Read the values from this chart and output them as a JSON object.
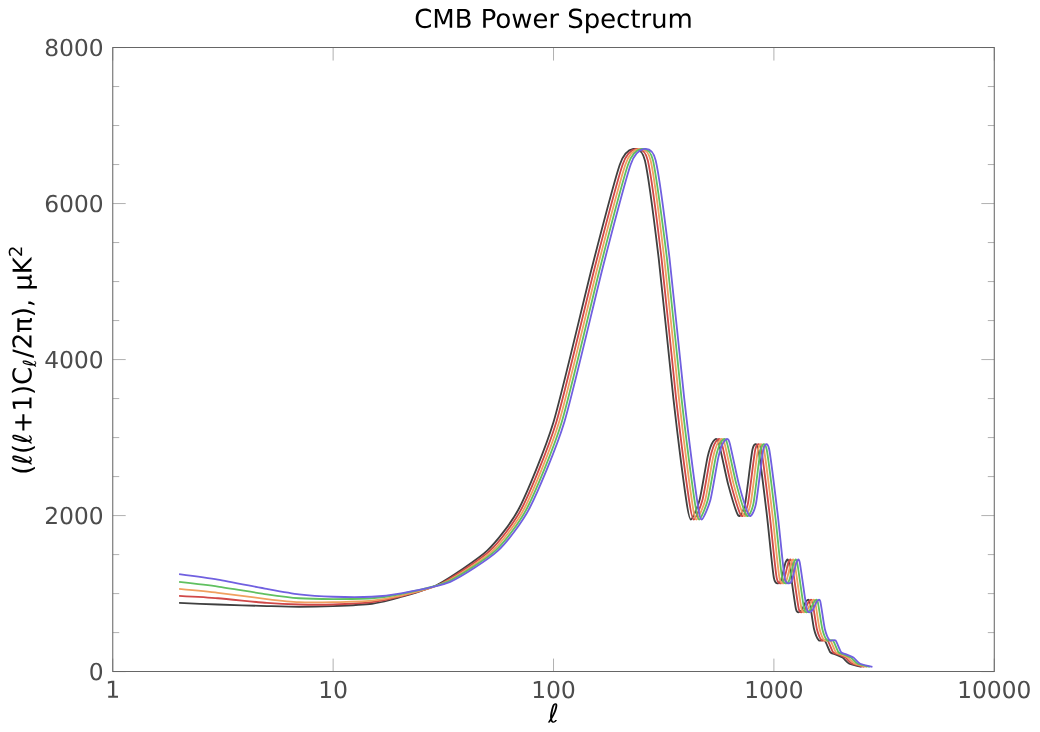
{
  "chart_data": {
    "type": "line",
    "title": "CMB Power Spectrum",
    "xlabel": "ℓ",
    "ylabel": "(ℓ(ℓ+1)C$_{ℓ}$/2π), μK$^{2}$",
    "log": "x",
    "x": [
      2,
      3,
      5,
      7,
      10,
      15,
      20,
      30,
      50,
      70,
      100,
      150,
      200,
      230,
      260,
      300,
      350,
      400,
      420,
      460,
      500,
      530,
      560,
      620,
      690,
      740,
      800,
      850,
      930,
      1000,
      1070,
      1130,
      1170,
      1260,
      1330,
      1400,
      1450,
      1520,
      1600,
      1700,
      1800,
      1900,
      2050,
      2200,
      2500
    ],
    "series": [
      {
        "color": "#7060e0",
        "x": [
          2,
          3,
          5,
          7,
          10,
          15,
          20,
          34,
          56,
          78,
          112,
          168,
          224,
          258,
          291,
          336,
          392,
          448,
          470,
          515,
          560,
          594,
          627,
          694,
          773,
          829,
          896,
          952,
          1042,
          1120,
          1198,
          1266,
          1310,
          1411,
          1490,
          1568,
          1624,
          1702,
          1792,
          1904,
          2016,
          2128,
          2296,
          2464,
          2800
        ],
        "values": [
          1250,
          1180,
          1060,
          990,
          960,
          960,
          1000,
          1150,
          1550,
          2100,
          3200,
          5200,
          6500,
          6700,
          6550,
          5300,
          3500,
          2200,
          1950,
          2200,
          2750,
          2950,
          2950,
          2400,
          2000,
          2150,
          2850,
          2850,
          2000,
          1200,
          1150,
          1400,
          1400,
          800,
          780,
          900,
          900,
          550,
          400,
          400,
          250,
          220,
          180,
          100,
          60
        ]
      },
      {
        "color": "#60c060",
        "x": [
          2,
          3,
          5,
          7,
          10,
          15,
          20,
          33,
          54.5,
          76,
          109,
          163.5,
          218,
          251,
          283,
          327,
          381,
          436,
          458,
          501,
          545,
          578,
          610,
          676,
          752,
          807,
          872,
          927,
          1014,
          1090,
          1166,
          1232,
          1275,
          1373,
          1450,
          1526,
          1580,
          1657,
          1744,
          1853,
          1962,
          2071,
          2234,
          2398,
          2725
        ],
        "values": [
          1150,
          1090,
          990,
          940,
          930,
          940,
          990,
          1150,
          1550,
          2100,
          3200,
          5200,
          6500,
          6700,
          6550,
          5300,
          3500,
          2200,
          1950,
          2200,
          2750,
          2950,
          2950,
          2400,
          2000,
          2150,
          2850,
          2850,
          2000,
          1200,
          1150,
          1400,
          1400,
          800,
          780,
          900,
          900,
          550,
          400,
          400,
          250,
          220,
          180,
          100,
          60
        ]
      },
      {
        "color": "#f0a060",
        "x": [
          2,
          3,
          5,
          7,
          10,
          15,
          20,
          32,
          53,
          74,
          106,
          159,
          212,
          244,
          276,
          318,
          371,
          424,
          445,
          488,
          530,
          562,
          594,
          657,
          731,
          784,
          848,
          901,
          986,
          1060,
          1134,
          1198,
          1240,
          1336,
          1410,
          1484,
          1537,
          1611,
          1696,
          1802,
          1908,
          2014,
          2173,
          2332,
          2650
        ],
        "values": [
          1060,
          1010,
          930,
          890,
          890,
          910,
          970,
          1140,
          1550,
          2100,
          3200,
          5200,
          6500,
          6700,
          6550,
          5300,
          3500,
          2200,
          1950,
          2200,
          2750,
          2950,
          2950,
          2400,
          2000,
          2150,
          2850,
          2850,
          2000,
          1200,
          1150,
          1400,
          1400,
          800,
          780,
          900,
          900,
          550,
          400,
          400,
          250,
          220,
          180,
          100,
          60
        ]
      },
      {
        "color": "#d04848",
        "x": [
          2,
          3,
          5,
          7,
          10,
          15,
          20,
          31,
          51.5,
          72,
          103,
          154.5,
          206,
          237,
          268,
          309,
          360,
          412,
          433,
          474,
          515,
          546,
          577,
          639,
          711,
          762,
          824,
          876,
          958,
          1030,
          1102,
          1164,
          1205,
          1298,
          1370,
          1442,
          1494,
          1566,
          1648,
          1751,
          1854,
          1957,
          2112,
          2266,
          2575
        ],
        "values": [
          970,
          940,
          880,
          860,
          860,
          890,
          960,
          1130,
          1550,
          2100,
          3200,
          5200,
          6500,
          6700,
          6550,
          5300,
          3500,
          2200,
          1950,
          2200,
          2750,
          2950,
          2950,
          2400,
          2000,
          2150,
          2850,
          2850,
          2000,
          1200,
          1150,
          1400,
          1400,
          800,
          780,
          900,
          900,
          550,
          400,
          400,
          250,
          220,
          180,
          100,
          60
        ]
      },
      {
        "color": "#404040",
        "values": [
          880,
          860,
          840,
          830,
          840,
          870,
          950,
          1120,
          1550,
          2100,
          3200,
          5200,
          6500,
          6700,
          6550,
          5300,
          3500,
          2200,
          1950,
          2200,
          2750,
          2950,
          2950,
          2400,
          2000,
          2150,
          2850,
          2850,
          2000,
          1200,
          1150,
          1400,
          1400,
          800,
          780,
          900,
          900,
          550,
          400,
          400,
          250,
          220,
          180,
          100,
          60
        ]
      }
    ],
    "xlim": [
      1,
      10000
    ],
    "xticks": [
      1,
      10,
      100,
      1000,
      10000
    ],
    "ylim": [
      0,
      8000
    ],
    "yticks": [
      0,
      2000,
      4000,
      6000,
      8000
    ],
    "grid": false
  }
}
